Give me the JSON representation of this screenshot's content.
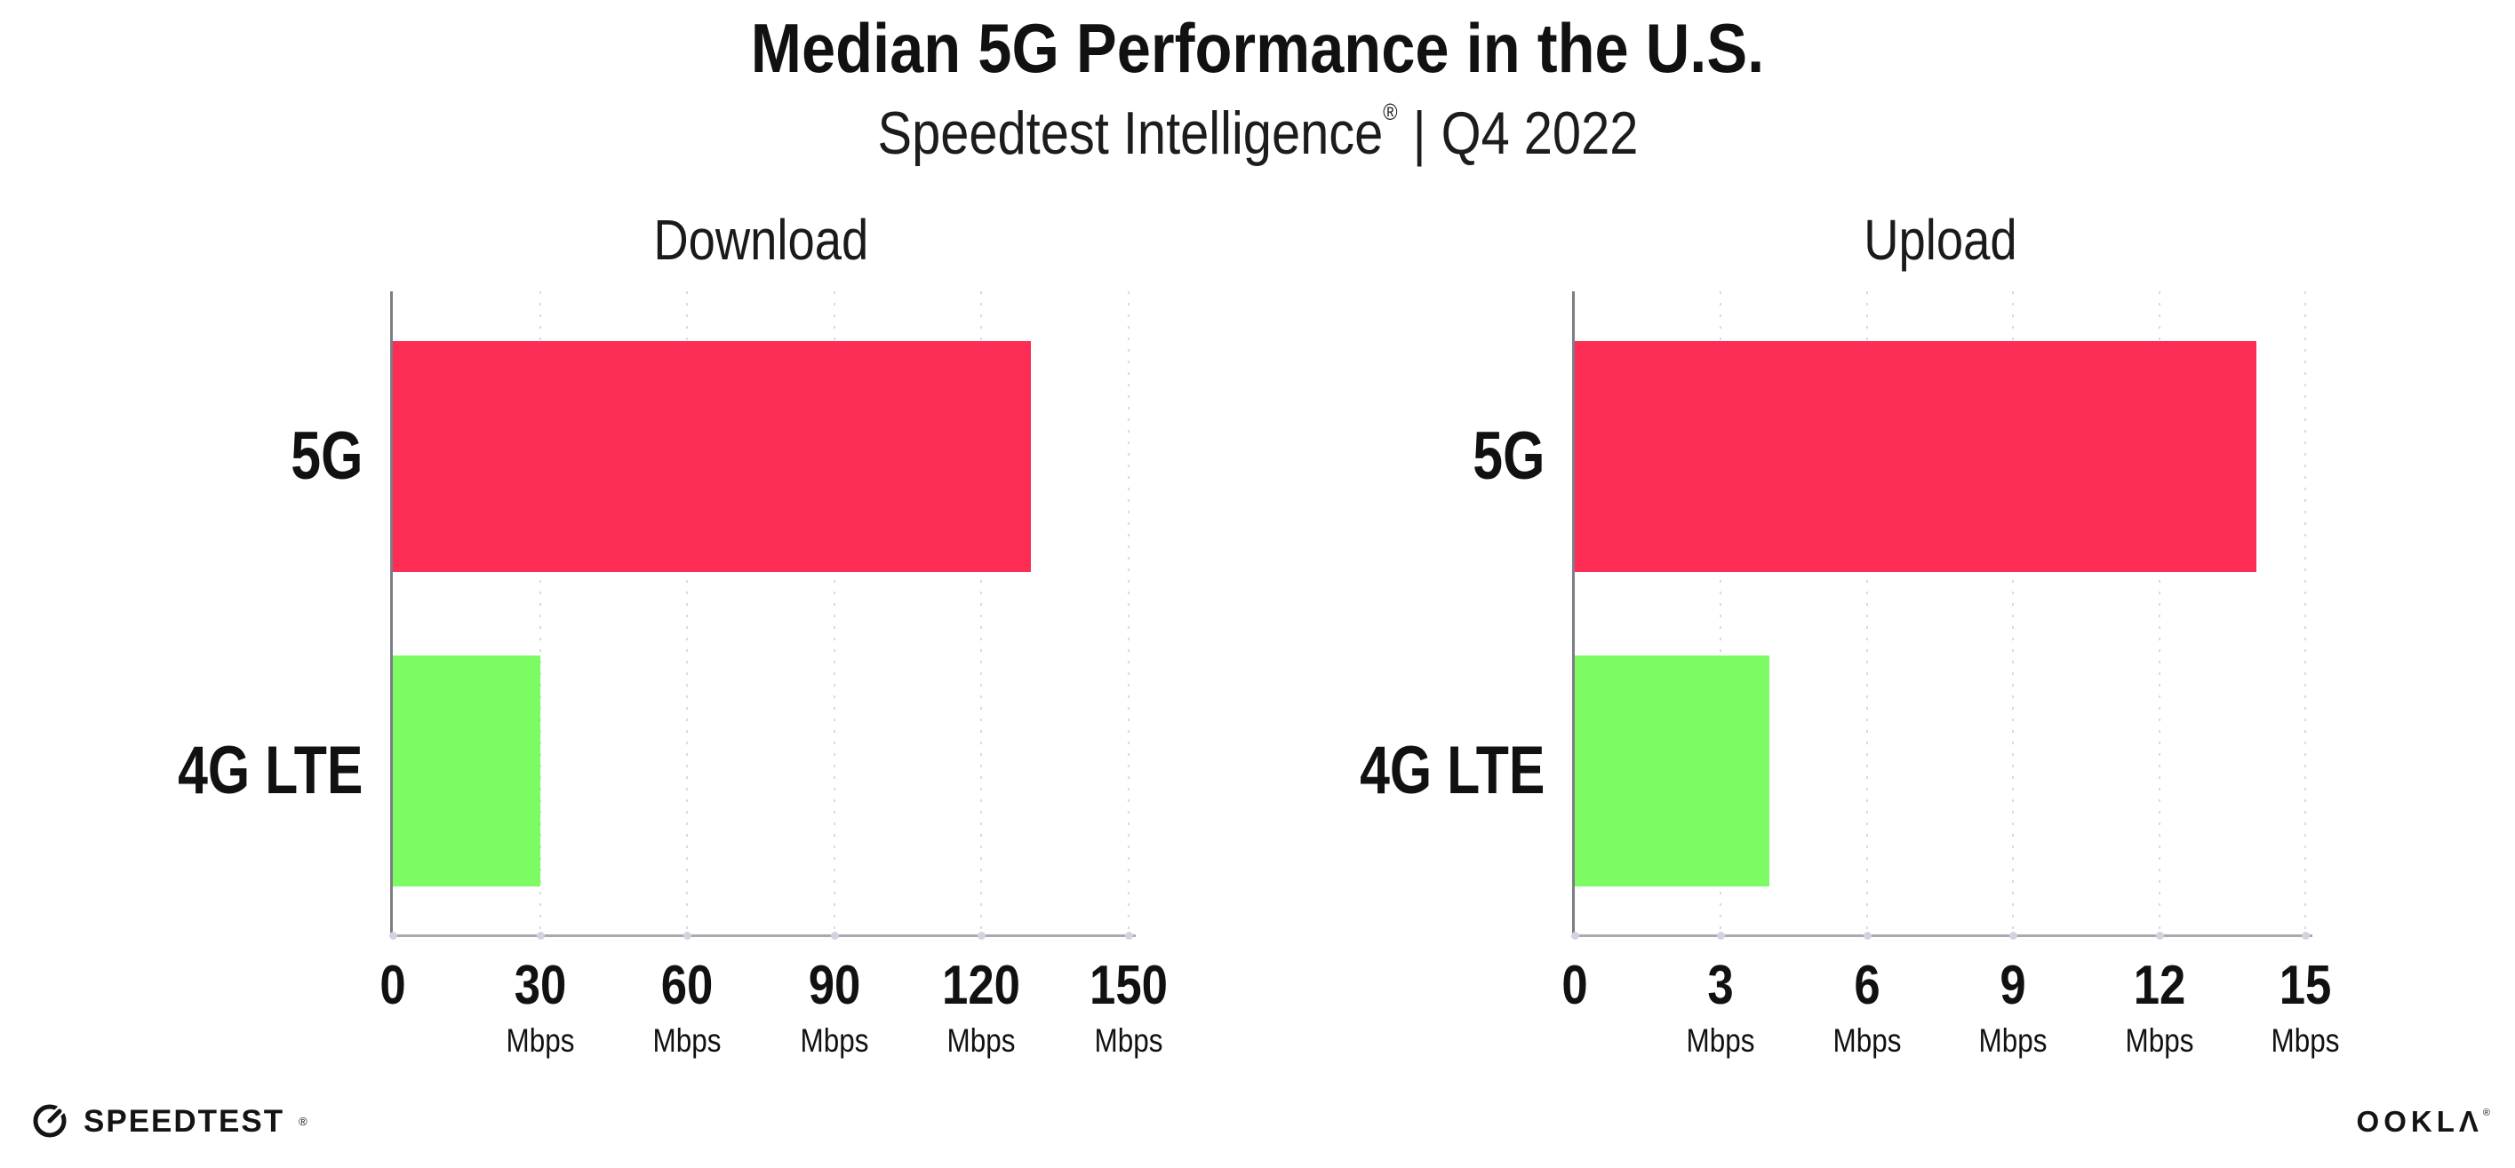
{
  "header": {
    "title": "Median 5G Performance in the U.S.",
    "subtitle": {
      "brand": "Speedtest Intelligence",
      "registered_mark": "®",
      "separator": "|",
      "period": "Q4 2022"
    }
  },
  "chart_data": [
    {
      "type": "bar",
      "orientation": "horizontal",
      "title": "Download",
      "categories": [
        "5G",
        "4G LTE"
      ],
      "values": [
        130,
        30
      ],
      "unit": "Mbps",
      "xlim": [
        0,
        150
      ],
      "xticks": [
        0,
        30,
        60,
        90,
        120,
        150
      ],
      "bar_colors": [
        "#FD2D55",
        "#7DFB63"
      ],
      "grid": "dotted-vertical",
      "legend": "none"
    },
    {
      "type": "bar",
      "orientation": "horizontal",
      "title": "Upload",
      "categories": [
        "5G",
        "4G LTE"
      ],
      "values": [
        14,
        4
      ],
      "unit": "Mbps",
      "xlim": [
        0,
        15
      ],
      "xticks": [
        0,
        3,
        6,
        9,
        12,
        15
      ],
      "bar_colors": [
        "#FD2D55",
        "#7DFB63"
      ],
      "grid": "dotted-vertical",
      "legend": "none"
    }
  ],
  "footer": {
    "speedtest_wordmark": "SPEEDTEST",
    "speedtest_registered_mark": "®",
    "ookla_wordmark": "OOKLΛ",
    "ookla_registered_mark": "®"
  },
  "colors": {
    "bar_5g": "#FD2D55",
    "bar_4g_lte": "#7DFB63",
    "text": "#111111",
    "gridline": "#D9D9E4",
    "axis_spine": "#7D7D85",
    "axis_line": "#A9A9AE"
  }
}
